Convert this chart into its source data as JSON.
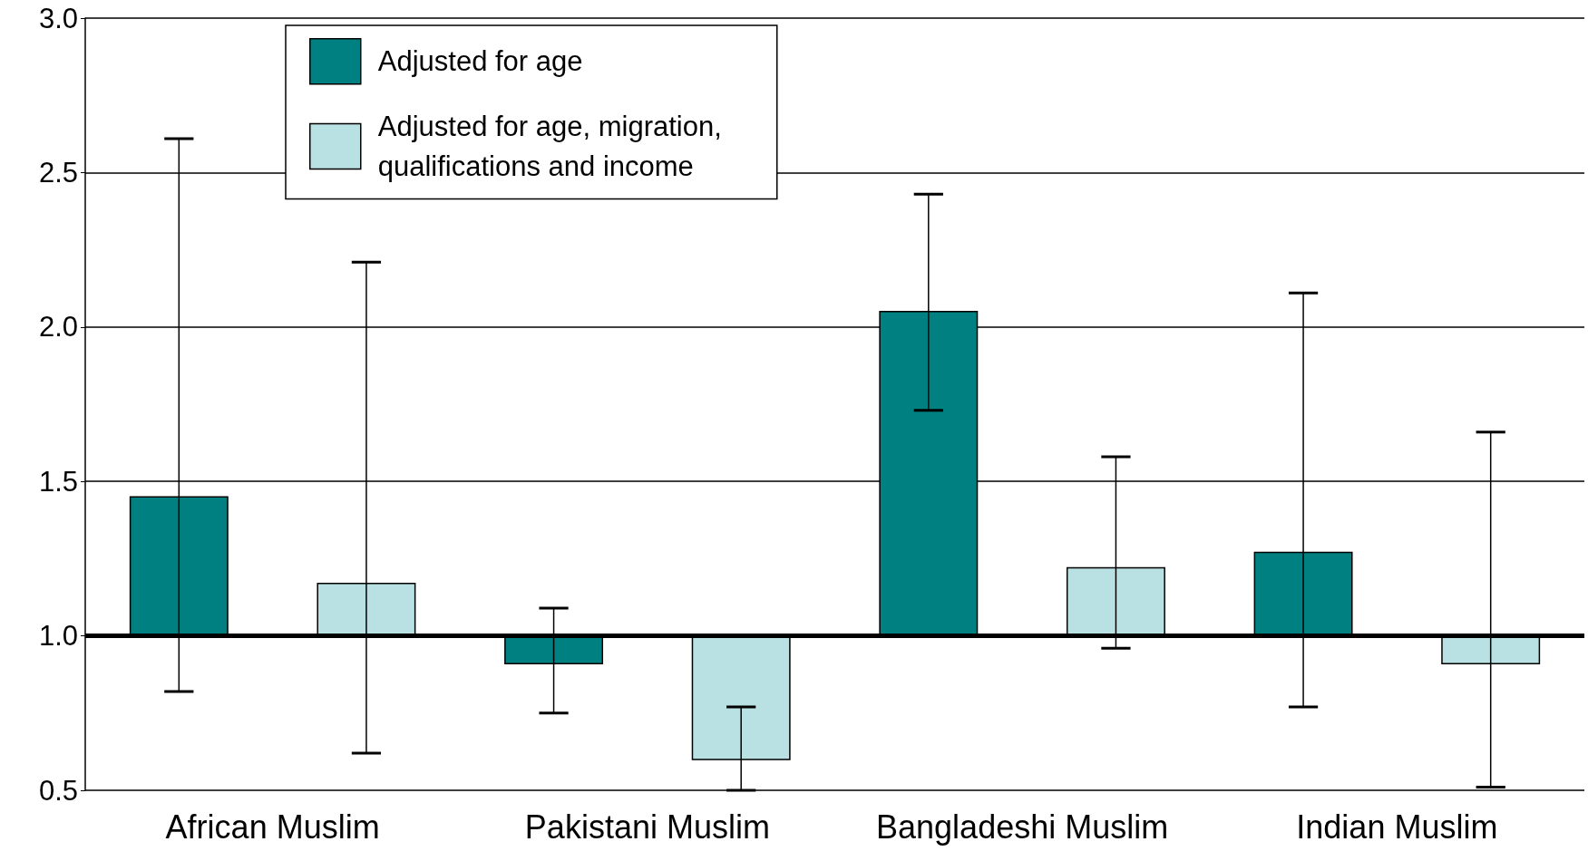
{
  "chart_data": {
    "type": "bar",
    "categories": [
      "African Muslim",
      "Pakistani Muslim",
      "Bangladeshi Muslim",
      "Indian Muslim"
    ],
    "series": [
      {
        "name": "Adjusted for age",
        "color": "#008080",
        "base": [
          1,
          1,
          1,
          1
        ],
        "values": [
          0.45,
          -0.09,
          1.05,
          0.27
        ],
        "errors": [
          [
            0.82,
            2.61
          ],
          [
            0.75,
            1.09
          ],
          [
            1.73,
            2.43
          ],
          [
            0.77,
            2.11
          ]
        ]
      },
      {
        "name": "Adjusted for age, migration, qualifications and income",
        "color": "#b9e0e2",
        "base": [
          1,
          1,
          1,
          1
        ],
        "values": [
          0.17,
          -0.4,
          0.22,
          -0.09
        ],
        "errors": [
          [
            0.62,
            2.21
          ],
          [
            0.5,
            0.77
          ],
          [
            0.96,
            1.58
          ],
          [
            0.51,
            1.66
          ]
        ]
      }
    ],
    "ylim": [
      0.5,
      3.0
    ],
    "yticks": [
      {
        "value": 0.5,
        "label": "0.5"
      },
      {
        "value": 1,
        "label": "1.0"
      },
      {
        "value": 1.5,
        "label": "1.5"
      },
      {
        "value": 2,
        "label": "2.0"
      },
      {
        "value": 2.5,
        "label": "2.5"
      },
      {
        "value": 3,
        "label": "3.0"
      }
    ],
    "ref_lines": [
      {
        "axis": "y",
        "value": 1,
        "label": null,
        "color": "#000000"
      }
    ],
    "grid": "y",
    "legend": "top left"
  }
}
